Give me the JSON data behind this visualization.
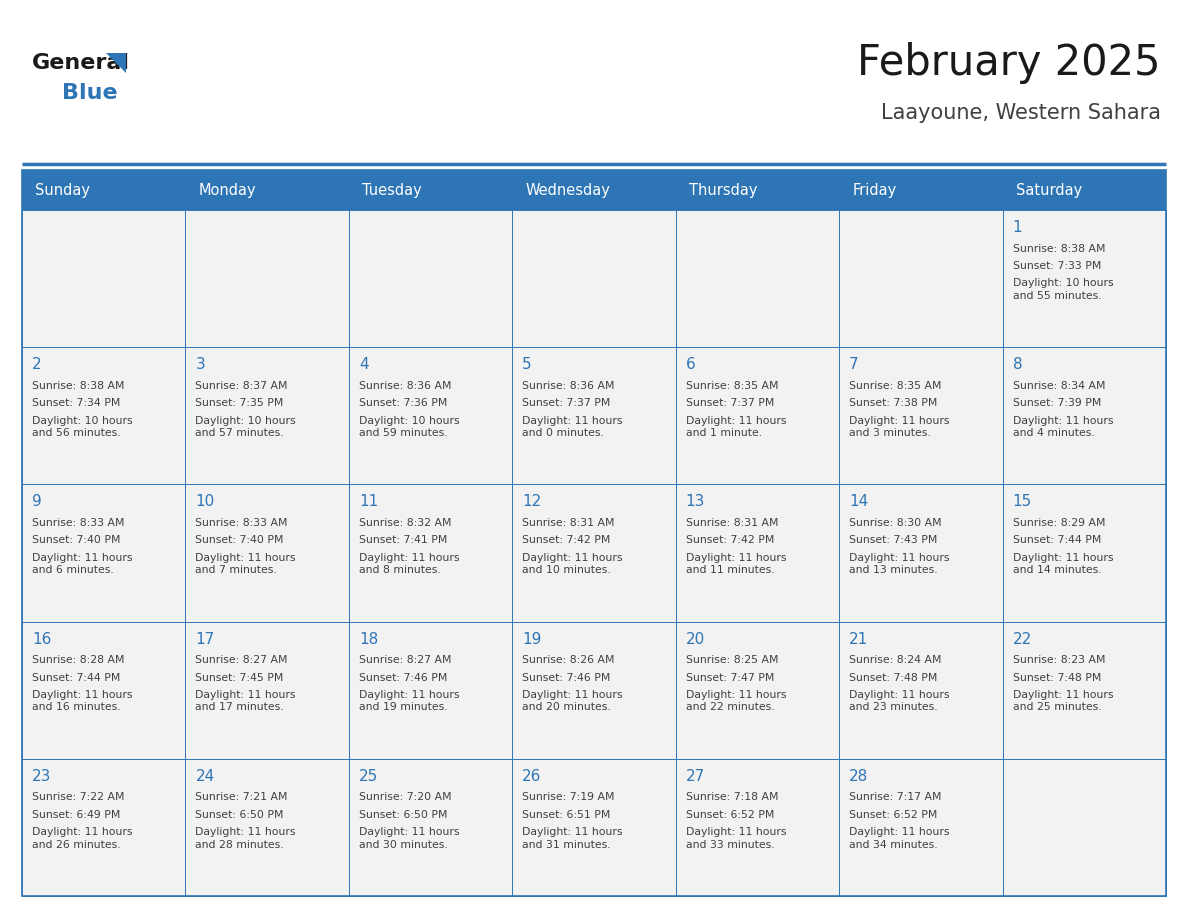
{
  "title": "February 2025",
  "subtitle": "Laayoune, Western Sahara",
  "days_of_week": [
    "Sunday",
    "Monday",
    "Tuesday",
    "Wednesday",
    "Thursday",
    "Friday",
    "Saturday"
  ],
  "header_bg": "#2E75B6",
  "header_text": "#FFFFFF",
  "cell_bg": "#F2F2F2",
  "cell_border": "#2E75B6",
  "day_num_color": "#2E75B6",
  "info_color": "#404040",
  "title_color": "#1a1a1a",
  "subtitle_color": "#404040",
  "logo_general_color": "#1a1a1a",
  "logo_blue_color": "#2E75B6",
  "calendar": [
    [
      null,
      null,
      null,
      null,
      null,
      null,
      {
        "day": "1",
        "sunrise": "8:38 AM",
        "sunset": "7:33 PM",
        "daylight": "10 hours\nand 55 minutes."
      }
    ],
    [
      {
        "day": "2",
        "sunrise": "8:38 AM",
        "sunset": "7:34 PM",
        "daylight": "10 hours\nand 56 minutes."
      },
      {
        "day": "3",
        "sunrise": "8:37 AM",
        "sunset": "7:35 PM",
        "daylight": "10 hours\nand 57 minutes."
      },
      {
        "day": "4",
        "sunrise": "8:36 AM",
        "sunset": "7:36 PM",
        "daylight": "10 hours\nand 59 minutes."
      },
      {
        "day": "5",
        "sunrise": "8:36 AM",
        "sunset": "7:37 PM",
        "daylight": "11 hours\nand 0 minutes."
      },
      {
        "day": "6",
        "sunrise": "8:35 AM",
        "sunset": "7:37 PM",
        "daylight": "11 hours\nand 1 minute."
      },
      {
        "day": "7",
        "sunrise": "8:35 AM",
        "sunset": "7:38 PM",
        "daylight": "11 hours\nand 3 minutes."
      },
      {
        "day": "8",
        "sunrise": "8:34 AM",
        "sunset": "7:39 PM",
        "daylight": "11 hours\nand 4 minutes."
      }
    ],
    [
      {
        "day": "9",
        "sunrise": "8:33 AM",
        "sunset": "7:40 PM",
        "daylight": "11 hours\nand 6 minutes."
      },
      {
        "day": "10",
        "sunrise": "8:33 AM",
        "sunset": "7:40 PM",
        "daylight": "11 hours\nand 7 minutes."
      },
      {
        "day": "11",
        "sunrise": "8:32 AM",
        "sunset": "7:41 PM",
        "daylight": "11 hours\nand 8 minutes."
      },
      {
        "day": "12",
        "sunrise": "8:31 AM",
        "sunset": "7:42 PM",
        "daylight": "11 hours\nand 10 minutes."
      },
      {
        "day": "13",
        "sunrise": "8:31 AM",
        "sunset": "7:42 PM",
        "daylight": "11 hours\nand 11 minutes."
      },
      {
        "day": "14",
        "sunrise": "8:30 AM",
        "sunset": "7:43 PM",
        "daylight": "11 hours\nand 13 minutes."
      },
      {
        "day": "15",
        "sunrise": "8:29 AM",
        "sunset": "7:44 PM",
        "daylight": "11 hours\nand 14 minutes."
      }
    ],
    [
      {
        "day": "16",
        "sunrise": "8:28 AM",
        "sunset": "7:44 PM",
        "daylight": "11 hours\nand 16 minutes."
      },
      {
        "day": "17",
        "sunrise": "8:27 AM",
        "sunset": "7:45 PM",
        "daylight": "11 hours\nand 17 minutes."
      },
      {
        "day": "18",
        "sunrise": "8:27 AM",
        "sunset": "7:46 PM",
        "daylight": "11 hours\nand 19 minutes."
      },
      {
        "day": "19",
        "sunrise": "8:26 AM",
        "sunset": "7:46 PM",
        "daylight": "11 hours\nand 20 minutes."
      },
      {
        "day": "20",
        "sunrise": "8:25 AM",
        "sunset": "7:47 PM",
        "daylight": "11 hours\nand 22 minutes."
      },
      {
        "day": "21",
        "sunrise": "8:24 AM",
        "sunset": "7:48 PM",
        "daylight": "11 hours\nand 23 minutes."
      },
      {
        "day": "22",
        "sunrise": "8:23 AM",
        "sunset": "7:48 PM",
        "daylight": "11 hours\nand 25 minutes."
      }
    ],
    [
      {
        "day": "23",
        "sunrise": "7:22 AM",
        "sunset": "6:49 PM",
        "daylight": "11 hours\nand 26 minutes."
      },
      {
        "day": "24",
        "sunrise": "7:21 AM",
        "sunset": "6:50 PM",
        "daylight": "11 hours\nand 28 minutes."
      },
      {
        "day": "25",
        "sunrise": "7:20 AM",
        "sunset": "6:50 PM",
        "daylight": "11 hours\nand 30 minutes."
      },
      {
        "day": "26",
        "sunrise": "7:19 AM",
        "sunset": "6:51 PM",
        "daylight": "11 hours\nand 31 minutes."
      },
      {
        "day": "27",
        "sunrise": "7:18 AM",
        "sunset": "6:52 PM",
        "daylight": "11 hours\nand 33 minutes."
      },
      {
        "day": "28",
        "sunrise": "7:17 AM",
        "sunset": "6:52 PM",
        "daylight": "11 hours\nand 34 minutes."
      },
      null
    ]
  ]
}
